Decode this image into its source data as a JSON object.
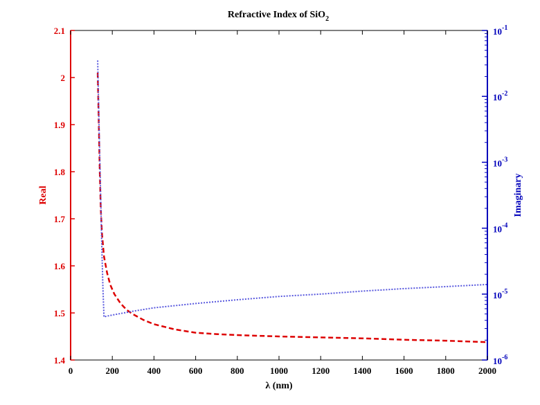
{
  "chart_data": {
    "type": "line",
    "title": "Refractive Index of SiO",
    "title_subscript": "2",
    "xlabel": "λ (nm)",
    "ylabel_left": "Real",
    "ylabel_right": "Imaginary",
    "xlim": [
      0,
      2000
    ],
    "ylim_left": [
      1.4,
      2.1
    ],
    "ylim_right": [
      1e-06,
      0.1
    ],
    "right_axis_scale": "log",
    "x_ticks": [
      "0",
      "200",
      "400",
      "600",
      "800",
      "1000",
      "1200",
      "1400",
      "1600",
      "1800",
      "2000"
    ],
    "y_left_ticks": [
      "1.4",
      "1.5",
      "1.6",
      "1.7",
      "1.8",
      "1.9",
      "2",
      "2.1"
    ],
    "y_right_ticks": [
      {
        "base": "10",
        "exp": "-6"
      },
      {
        "base": "10",
        "exp": "-5"
      },
      {
        "base": "10",
        "exp": "-4"
      },
      {
        "base": "10",
        "exp": "-3"
      },
      {
        "base": "10",
        "exp": "-2"
      },
      {
        "base": "10",
        "exp": "-1"
      }
    ],
    "colors": {
      "real": "#dd0000",
      "imag": "#0000bb",
      "imag_line": "#5555dd",
      "frame": "#000000"
    },
    "grid": false,
    "series": [
      {
        "axis": "left",
        "style": "dashed",
        "color": "#dd0000",
        "x": [
          130,
          135,
          140,
          145,
          150,
          160,
          175,
          190,
          210,
          240,
          270,
          300,
          350,
          400,
          500,
          600,
          700,
          800,
          1000,
          1200,
          1400,
          1600,
          1800,
          2000
        ],
        "y": [
          2.01,
          1.91,
          1.8,
          1.72,
          1.67,
          1.62,
          1.585,
          1.56,
          1.54,
          1.52,
          1.506,
          1.497,
          1.485,
          1.476,
          1.465,
          1.458,
          1.455,
          1.453,
          1.45,
          1.448,
          1.446,
          1.443,
          1.441,
          1.438
        ]
      },
      {
        "axis": "right",
        "style": "dotted",
        "color": "#5555dd",
        "x": [
          130,
          137,
          145,
          150,
          155,
          160,
          170,
          200,
          300,
          400,
          600,
          800,
          1000,
          1200,
          1400,
          1600,
          1800,
          2000
        ],
        "y": [
          0.035,
          0.003,
          0.00025,
          4.5e-05,
          1.2e-05,
          4.5e-06,
          4.6e-06,
          4.8e-06,
          5.5e-06,
          6.2e-06,
          7.2e-06,
          8.2e-06,
          9.2e-06,
          1e-05,
          1.11e-05,
          1.21e-05,
          1.3e-05,
          1.4e-05
        ]
      }
    ]
  }
}
